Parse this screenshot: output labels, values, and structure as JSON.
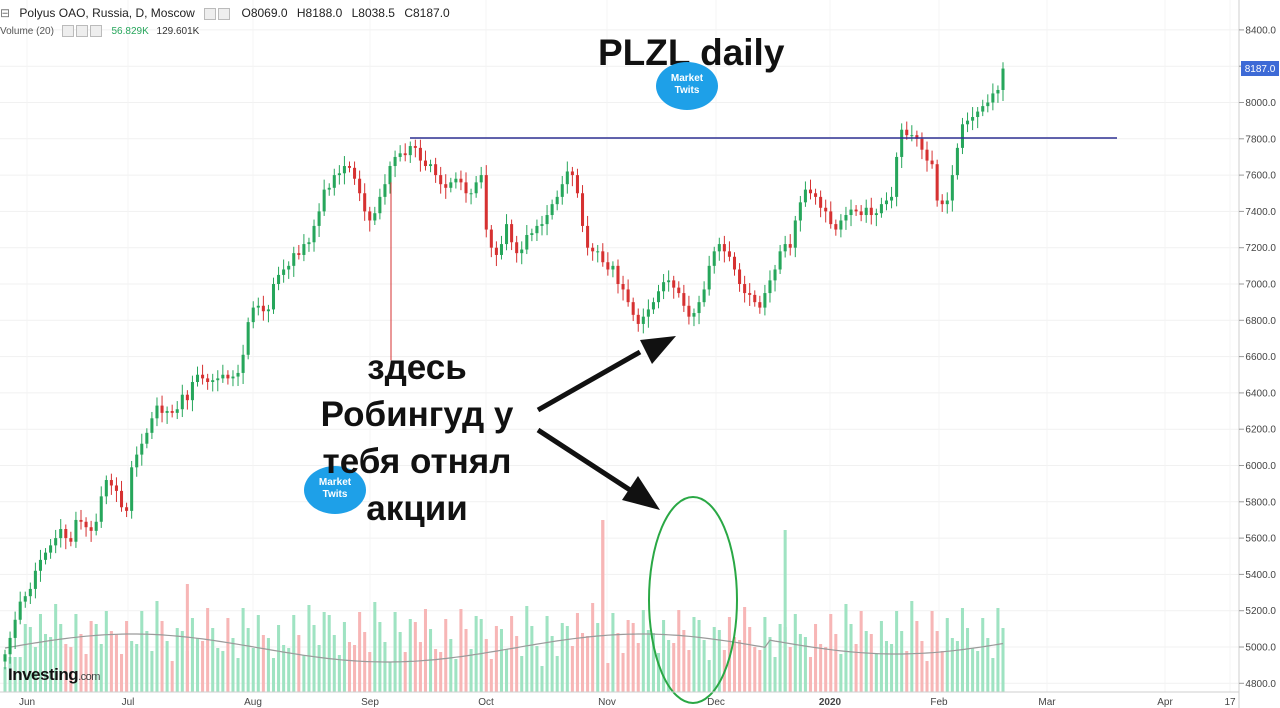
{
  "header": {
    "symbol": "Polyus OAO, Russia, D, Moscow",
    "open": "O8069.0",
    "high": "H8188.0",
    "low": "L8038.5",
    "close": "C8187.0",
    "volume_label": "Volume (20)",
    "volume_value": "56.829K",
    "volume_ma": "129.601K"
  },
  "title_text": "PLZL daily",
  "annotation": [
    "здесь",
    "Робингуд у",
    "тебя отнял",
    "акции"
  ],
  "watermark_line1": "Market",
  "watermark_line2": "Twits",
  "brand": "Investing",
  "brand_suffix": ".com",
  "last_price_label": "8187.0",
  "colors": {
    "up": "#26a65b",
    "down": "#d63131",
    "vol_up": "#9fe3c2",
    "vol_down": "#f7b6b6",
    "resistance": "#2e3192",
    "ellipse": "#2aa845",
    "badge": "#1ea0e8"
  },
  "chart_data": {
    "type": "candlestick",
    "title": "PLZL daily",
    "y_ticks": [
      "4800.0",
      "5000.0",
      "5200.0",
      "5400.0",
      "5600.0",
      "5800.0",
      "6000.0",
      "6200.0",
      "6400.0",
      "6600.0",
      "6800.0",
      "7000.0",
      "7200.0",
      "7400.0",
      "7600.0",
      "7800.0",
      "8000.0",
      "8200.0",
      "8400.0"
    ],
    "x_ticks": [
      "Jun",
      "Jul",
      "Aug",
      "Sep",
      "Oct",
      "Nov",
      "Dec",
      "2020",
      "Feb",
      "Mar",
      "Apr",
      "17"
    ],
    "resistance_level": 7800,
    "closes": [
      4960,
      5050,
      5150,
      5250,
      5280,
      5320,
      5420,
      5480,
      5520,
      5560,
      5600,
      5650,
      5600,
      5580,
      5700,
      5690,
      5660,
      5640,
      5690,
      5830,
      5920,
      5890,
      5860,
      5770,
      5750,
      5990,
      6060,
      6120,
      6180,
      6260,
      6330,
      6290,
      6300,
      6290,
      6310,
      6390,
      6360,
      6460,
      6500,
      6480,
      6460,
      6470,
      6480,
      6500,
      6480,
      6490,
      6510,
      6610,
      6790,
      6870,
      6880,
      6850,
      6860,
      7000,
      7050,
      7080,
      7100,
      7170,
      7160,
      7220,
      7230,
      7320,
      7400,
      7520,
      7530,
      7600,
      7610,
      7650,
      7640,
      7580,
      7500,
      7400,
      7350,
      7390,
      7480,
      7550,
      7650,
      7700,
      7720,
      7710,
      7760,
      7750,
      7680,
      7650,
      7660,
      7600,
      7550,
      7530,
      7560,
      7580,
      7560,
      7500,
      7500,
      7560,
      7600,
      7300,
      7200,
      7160,
      7220,
      7330,
      7230,
      7170,
      7190,
      7270,
      7280,
      7320,
      7330,
      7380,
      7440,
      7480,
      7550,
      7620,
      7600,
      7500,
      7320,
      7200,
      7180,
      7180,
      7120,
      7080,
      7100,
      7000,
      6970,
      6900,
      6830,
      6780,
      6820,
      6860,
      6900,
      6960,
      7010,
      7020,
      6980,
      6950,
      6880,
      6820,
      6840,
      6900,
      6970,
      7100,
      7180,
      7220,
      7180,
      7150,
      7080,
      7000,
      6950,
      6940,
      6900,
      6870,
      6950,
      7020,
      7080,
      7180,
      7220,
      7200,
      7350,
      7450,
      7520,
      7500,
      7480,
      7420,
      7400,
      7330,
      7300,
      7350,
      7380,
      7410,
      7400,
      7380,
      7420,
      7380,
      7390,
      7440,
      7460,
      7480,
      7700,
      7850,
      7820,
      7820,
      7800,
      7740,
      7680,
      7660,
      7460,
      7440,
      7460,
      7600,
      7750,
      7880,
      7900,
      7920,
      7950,
      7980,
      8000,
      8050,
      8069,
      8187
    ]
  }
}
